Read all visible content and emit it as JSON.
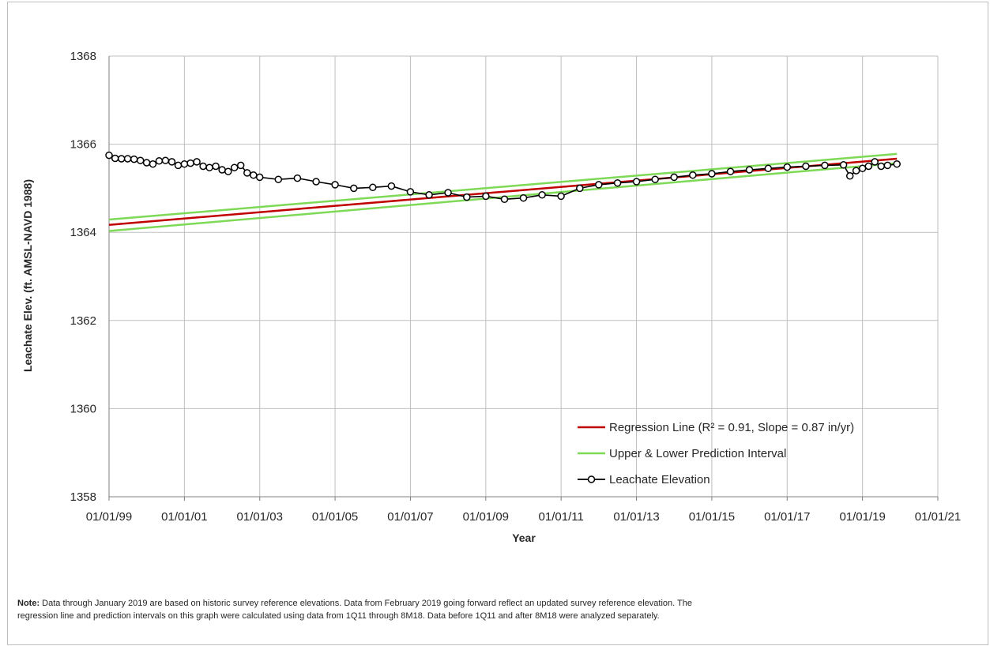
{
  "chart_data": {
    "type": "line",
    "xlabel": "Year",
    "ylabel": "Leachate Elev. (ft. AMSL-NAVD 1988)",
    "xlim": [
      "1999-01-01",
      "2021-01-01"
    ],
    "ylim": [
      1358,
      1368
    ],
    "x_ticks": [
      "01/01/99",
      "01/01/01",
      "01/01/03",
      "01/01/05",
      "01/01/07",
      "01/01/09",
      "01/01/11",
      "01/01/13",
      "01/01/15",
      "01/01/17",
      "01/01/19",
      "01/01/21"
    ],
    "y_ticks": [
      1358,
      1360,
      1362,
      1364,
      1366,
      1368
    ],
    "grid": true,
    "legend_position": "bottom-right",
    "legend": {
      "regression": "Regression Line (R² = 0.91, Slope = 0.87 in/yr)",
      "interval": "Upper & Lower Prediction Interval",
      "leachate": "Leachate Elevation"
    },
    "colors": {
      "regression": "#c00000",
      "interval": "#7ed957",
      "leachate": "#000000"
    },
    "series": [
      {
        "name": "Regression Line (R² = 0.91, Slope = 0.87 in/yr)",
        "x": [
          "1999-01-01",
          "2019-12-01"
        ],
        "y": [
          1364.17,
          1365.67
        ]
      },
      {
        "name": "Upper & Lower Prediction Interval",
        "x": [
          "1999-01-01",
          "2019-12-01"
        ],
        "y": [
          1364.29,
          1365.78
        ]
      },
      {
        "name": "Upper & Lower Prediction Interval",
        "x": [
          "1999-01-01",
          "2019-12-01"
        ],
        "y": [
          1364.03,
          1365.57
        ]
      },
      {
        "name": "Leachate Elevation",
        "x": [
          "1999-01-01",
          "1999-03-01",
          "1999-05-01",
          "1999-07-01",
          "1999-09-01",
          "1999-11-01",
          "2000-01-01",
          "2000-03-01",
          "2000-05-01",
          "2000-07-01",
          "2000-09-01",
          "2000-11-01",
          "2001-01-01",
          "2001-03-01",
          "2001-05-01",
          "2001-07-01",
          "2001-09-01",
          "2001-11-01",
          "2002-01-01",
          "2002-03-01",
          "2002-05-01",
          "2002-07-01",
          "2002-09-01",
          "2002-11-01",
          "2003-01-01",
          "2003-07-01",
          "2004-01-01",
          "2004-07-01",
          "2005-01-01",
          "2005-07-01",
          "2006-01-01",
          "2006-07-01",
          "2007-01-01",
          "2007-07-01",
          "2008-01-01",
          "2008-07-01",
          "2009-01-01",
          "2009-07-01",
          "2010-01-01",
          "2010-07-01",
          "2011-01-01",
          "2011-07-01",
          "2012-01-01",
          "2012-07-01",
          "2013-01-01",
          "2013-07-01",
          "2014-01-01",
          "2014-07-01",
          "2015-01-01",
          "2015-07-01",
          "2016-01-01",
          "2016-07-01",
          "2017-01-01",
          "2017-07-01",
          "2018-01-01",
          "2018-07-01",
          "2018-09-01",
          "2018-11-01",
          "2019-01-01",
          "2019-03-01",
          "2019-05-01",
          "2019-07-01",
          "2019-09-01",
          "2019-12-01"
        ],
        "y": [
          1365.75,
          1365.68,
          1365.67,
          1365.67,
          1365.66,
          1365.63,
          1365.58,
          1365.55,
          1365.62,
          1365.63,
          1365.6,
          1365.52,
          1365.55,
          1365.57,
          1365.6,
          1365.5,
          1365.47,
          1365.5,
          1365.42,
          1365.38,
          1365.47,
          1365.52,
          1365.35,
          1365.3,
          1365.25,
          1365.2,
          1365.23,
          1365.15,
          1365.08,
          1365.0,
          1365.02,
          1365.05,
          1364.92,
          1364.85,
          1364.9,
          1364.8,
          1364.82,
          1364.75,
          1364.78,
          1364.85,
          1364.82,
          1365.0,
          1365.08,
          1365.12,
          1365.15,
          1365.2,
          1365.25,
          1365.3,
          1365.33,
          1365.38,
          1365.42,
          1365.45,
          1365.48,
          1365.5,
          1365.52,
          1365.53,
          1365.28,
          1365.4,
          1365.45,
          1365.5,
          1365.6,
          1365.5,
          1365.52,
          1365.55
        ]
      }
    ]
  },
  "note": {
    "label": "Note:",
    "text": " Data through January 2019 are based on historic survey reference elevations. Data from February 2019 going forward reflect an updated survey reference elevation.  The regression line and prediction intervals on this graph were calculated using data from 1Q11 through 8M18. Data before 1Q11 and after 8M18 were analyzed separately."
  }
}
